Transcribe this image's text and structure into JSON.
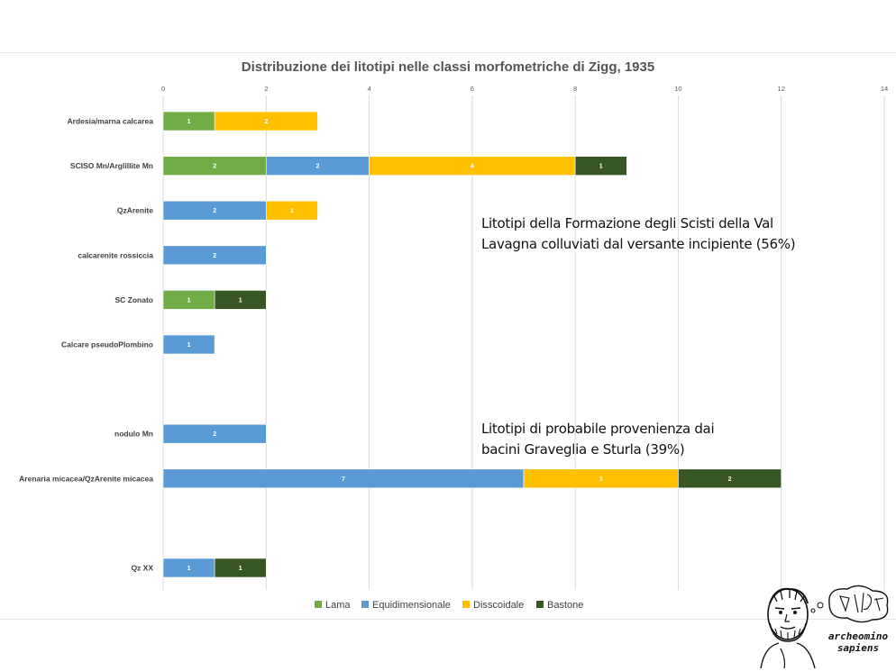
{
  "chart_data": {
    "type": "bar",
    "orientation": "horizontal",
    "stacked": true,
    "title": "Distribuzione dei litotipi nelle classi morfometriche di Zigg, 1935",
    "x_axis": {
      "position": "top",
      "range": [
        0,
        14
      ],
      "ticks": [
        "0",
        "2",
        "4",
        "6",
        "8",
        "10",
        "12",
        "14"
      ]
    },
    "grid": true,
    "legend_position": "bottom",
    "categories": [
      "Ardesia/marna calcarea",
      "SCISO Mn/Arglillite Mn",
      "QzArenite",
      "calcarenite rossiccia",
      "SC Zonato",
      "Calcare pseudoPlombino",
      "",
      "nodulo Mn",
      "Arenaria micacea/QzArenite micacea",
      "",
      "Qz XX"
    ],
    "series": [
      {
        "name": "Lama",
        "color": "#70ad47",
        "values": [
          1,
          2,
          0,
          0,
          1,
          0,
          0,
          0,
          0,
          0,
          0
        ]
      },
      {
        "name": "Equidimensionale",
        "color": "#5b9bd5",
        "values": [
          0,
          2,
          2,
          2,
          0,
          1,
          0,
          2,
          7,
          0,
          1
        ]
      },
      {
        "name": "Disscoidale",
        "color": "#ffc000",
        "values": [
          2,
          4,
          1,
          0,
          0,
          0,
          0,
          0,
          3,
          0,
          0
        ]
      },
      {
        "name": "Bastone",
        "color": "#375623",
        "values": [
          0,
          1,
          0,
          0,
          1,
          0,
          0,
          0,
          2,
          0,
          1
        ]
      }
    ],
    "annotations": [
      {
        "lines": [
          "Litotipi della Formazione degli Scisti della Val",
          "Lavagna colluviati dal versante incipiente (56%)"
        ]
      },
      {
        "lines": [
          "Litotipi di probabile provenienza dai",
          "bacini Graveglia e Sturla (39%)"
        ]
      }
    ]
  },
  "logo": {
    "lines": [
      "archeomino",
      "sapiens"
    ]
  }
}
